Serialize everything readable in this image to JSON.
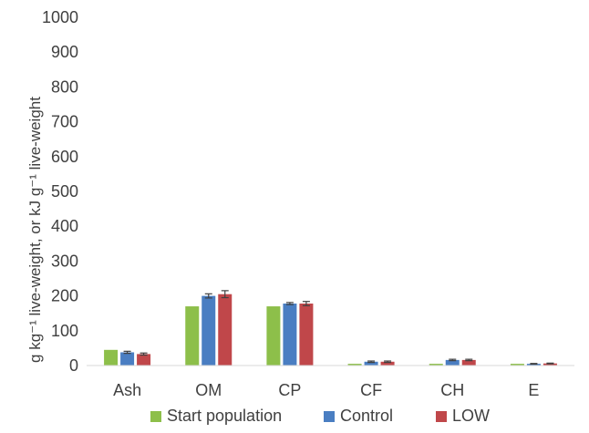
{
  "chart_data": {
    "type": "bar",
    "categories": [
      "Ash",
      "OM",
      "CP",
      "CF",
      "CH",
      "E"
    ],
    "series": [
      {
        "name": "Start population",
        "color": "#8DBF4A",
        "values": [
          45,
          170,
          170,
          5,
          5,
          5
        ],
        "errors": [
          0,
          0,
          0,
          0,
          0,
          0
        ]
      },
      {
        "name": "Control",
        "color": "#4A7EC2",
        "values": [
          38,
          200,
          178,
          11,
          16,
          5
        ],
        "errors": [
          3,
          6,
          3,
          2,
          2,
          1
        ]
      },
      {
        "name": "LOW",
        "color": "#C0474A",
        "values": [
          33,
          205,
          178,
          11,
          16,
          6
        ],
        "errors": [
          3,
          10,
          6,
          2,
          2,
          1
        ]
      }
    ],
    "ylim": [
      0,
      1000
    ],
    "yticks": [
      0,
      100,
      200,
      300,
      400,
      500,
      600,
      700,
      800,
      900,
      1000
    ],
    "ylabel": "g kg⁻¹ live-weight, or kJ g⁻¹ live-weight",
    "xlabel": "",
    "grid": false,
    "legend_position": "bottom"
  }
}
